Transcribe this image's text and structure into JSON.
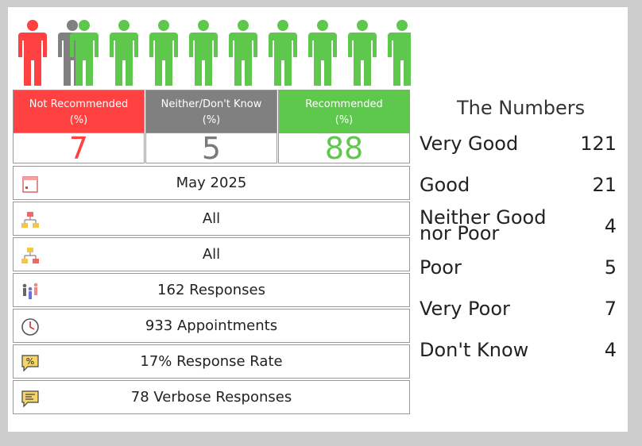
{
  "people": {
    "icons": [
      {
        "status": "not-recommended",
        "color": "#ff4141"
      },
      {
        "status": "neither",
        "color": "#808080"
      },
      {
        "status": "recommended",
        "color": "#5ec84c"
      },
      {
        "status": "recommended",
        "color": "#5ec84c"
      },
      {
        "status": "recommended",
        "color": "#5ec84c"
      },
      {
        "status": "recommended",
        "color": "#5ec84c"
      },
      {
        "status": "recommended",
        "color": "#5ec84c"
      },
      {
        "status": "recommended",
        "color": "#5ec84c"
      },
      {
        "status": "recommended",
        "color": "#5ec84c"
      },
      {
        "status": "recommended",
        "color": "#5ec84c"
      }
    ]
  },
  "categories": [
    {
      "label_line1": "Not Recommended",
      "label_line2": "(%)",
      "value": "7",
      "color": "#ff4141"
    },
    {
      "label_line1": "Neither/Don't Know",
      "label_line2": "(%)",
      "value": "5",
      "color": "#808080"
    },
    {
      "label_line1": "Recommended",
      "label_line2": "(%)",
      "value": "88",
      "color": "#5ec84c"
    }
  ],
  "info": [
    {
      "icon": "calendar-icon",
      "text": "May 2025"
    },
    {
      "icon": "org-chart-red-icon",
      "text": "All"
    },
    {
      "icon": "org-chart-yellow-icon",
      "text": "All"
    },
    {
      "icon": "people-group-icon",
      "text": "162 Responses"
    },
    {
      "icon": "clock-icon",
      "text": "933 Appointments"
    },
    {
      "icon": "percent-speech-icon",
      "text": "17% Response Rate"
    },
    {
      "icon": "text-speech-icon",
      "text": "78 Verbose Responses"
    }
  ],
  "numbers": {
    "title": "The Numbers",
    "rows": [
      {
        "line1": "Very Good",
        "line2": "",
        "count": "121"
      },
      {
        "line1": "Good",
        "line2": "",
        "count": "21"
      },
      {
        "line1": "Neither Good",
        "line2": "nor Poor",
        "count": "4"
      },
      {
        "line1": "Poor",
        "line2": "",
        "count": "5"
      },
      {
        "line1": "Very Poor",
        "line2": "",
        "count": "7"
      },
      {
        "line1": "Don't Know",
        "line2": "",
        "count": "4"
      }
    ]
  }
}
